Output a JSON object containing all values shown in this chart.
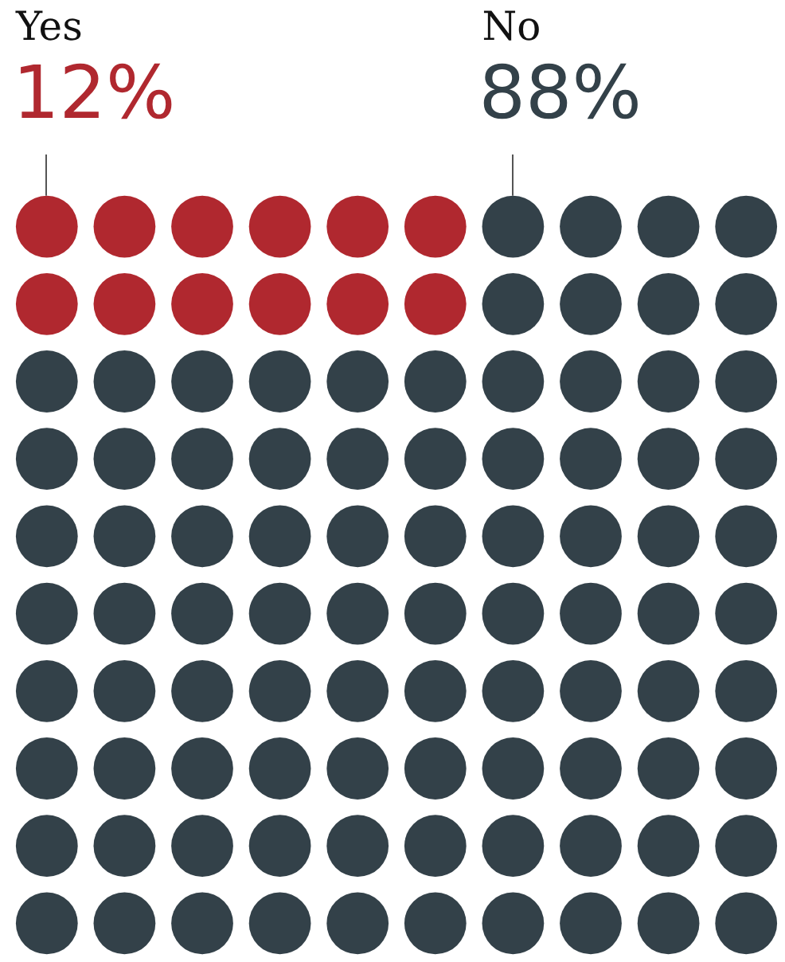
{
  "chart_data": {
    "type": "other",
    "categories": [
      "Yes",
      "No"
    ],
    "values": [
      12,
      88
    ],
    "value_labels": [
      "12%",
      "88%"
    ],
    "colors": [
      "#b0282f",
      "#334149"
    ]
  }
}
